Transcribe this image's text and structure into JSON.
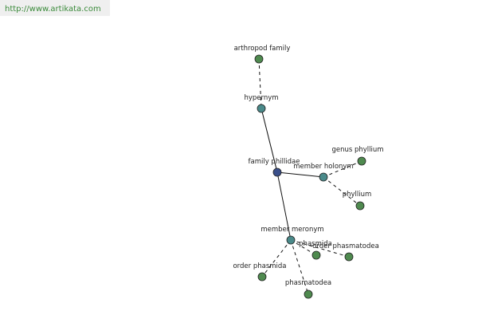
{
  "header": {
    "url": "http://www.artikata.com"
  },
  "nodes": [
    {
      "label": "arthropod family"
    },
    {
      "label": "hypernym"
    },
    {
      "label": "family phillidae"
    },
    {
      "label": "member holonym"
    },
    {
      "label": "genus phyllium"
    },
    {
      "label": "phyllium"
    },
    {
      "label": "member meronym"
    },
    {
      "label": "phasmida"
    },
    {
      "label": "order phasmatodea"
    },
    {
      "label": "order phasmida"
    },
    {
      "label": "phasmatodea"
    }
  ]
}
